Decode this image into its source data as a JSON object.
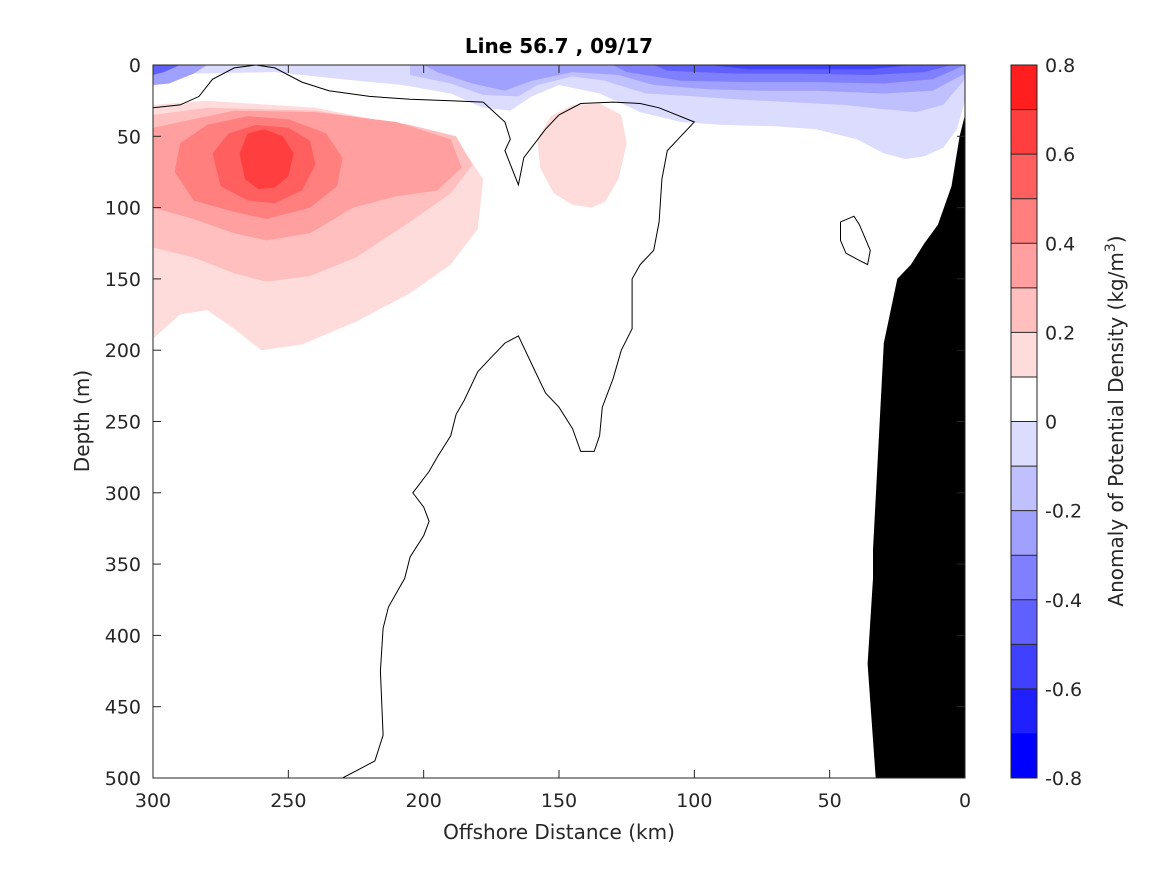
{
  "chart_data": {
    "type": "heatmap",
    "title": "Line 56.7 , 09/17",
    "xlabel": "Offshore Distance (km)",
    "ylabel": "Depth (m)",
    "colorbar_label_text": "Anomaly of Potential Density (kg/m",
    "colorbar_label_sup": "3",
    "colorbar_label_close": ")",
    "xlim": [
      300,
      0
    ],
    "ylim": [
      500,
      0
    ],
    "x_reversed": true,
    "y_reversed": true,
    "x_ticks": [
      300,
      250,
      200,
      150,
      100,
      50,
      0
    ],
    "x_tick_labels": [
      "300",
      "250",
      "200",
      "150",
      "100",
      "50",
      "0"
    ],
    "y_ticks": [
      0,
      50,
      100,
      150,
      200,
      250,
      300,
      350,
      400,
      450,
      500
    ],
    "y_tick_labels": [
      "0",
      "50",
      "100",
      "150",
      "200",
      "250",
      "300",
      "350",
      "400",
      "450",
      "500"
    ],
    "colorbar": {
      "min": -0.8,
      "max": 0.8,
      "levels": [
        -0.8,
        -0.7,
        -0.6,
        -0.5,
        -0.4,
        -0.3,
        -0.2,
        -0.1,
        0,
        0.1,
        0.2,
        0.3,
        0.4,
        0.5,
        0.6,
        0.7,
        0.8
      ],
      "colors": [
        "#0000ff",
        "#2020ff",
        "#4040ff",
        "#6060ff",
        "#8080ff",
        "#a0a0ff",
        "#c0c0ff",
        "#dcdcff",
        "#ffffff",
        "#ffdcdc",
        "#ffbfbf",
        "#ff9f9f",
        "#ff7f7f",
        "#ff5f5f",
        "#ff3f3f",
        "#ff1f1f"
      ],
      "tick_values": [
        -0.8,
        -0.6,
        -0.4,
        -0.2,
        0,
        0.2,
        0.4,
        0.6,
        0.8
      ],
      "tick_labels": [
        "-0.8",
        "-0.6",
        "-0.4",
        "-0.2",
        "0",
        "0.2",
        "0.4",
        "0.6",
        "0.8"
      ]
    },
    "positive_anomalies": [
      {
        "level": 0.1,
        "color": "#ffdcdc",
        "points": [
          [
            300,
            192
          ],
          [
            290,
            175
          ],
          [
            280,
            172
          ],
          [
            270,
            185
          ],
          [
            260,
            200
          ],
          [
            245,
            196
          ],
          [
            225,
            180
          ],
          [
            205,
            160
          ],
          [
            190,
            140
          ],
          [
            180,
            115
          ],
          [
            178,
            80
          ],
          [
            185,
            60
          ],
          [
            200,
            45
          ],
          [
            240,
            30
          ],
          [
            280,
            25
          ],
          [
            300,
            28
          ]
        ]
      },
      {
        "level": 0.2,
        "color": "#ffbfbf",
        "points": [
          [
            300,
            128
          ],
          [
            285,
            135
          ],
          [
            270,
            146
          ],
          [
            258,
            152
          ],
          [
            242,
            148
          ],
          [
            225,
            135
          ],
          [
            205,
            110
          ],
          [
            190,
            90
          ],
          [
            182,
            70
          ],
          [
            188,
            50
          ],
          [
            205,
            42
          ],
          [
            240,
            32
          ],
          [
            280,
            30
          ],
          [
            300,
            35
          ]
        ]
      },
      {
        "level": 0.3,
        "color": "#ff9f9f",
        "points": [
          [
            300,
            100
          ],
          [
            285,
            108
          ],
          [
            270,
            118
          ],
          [
            258,
            123
          ],
          [
            242,
            118
          ],
          [
            226,
            100
          ],
          [
            210,
            92
          ],
          [
            195,
            88
          ],
          [
            186,
            72
          ],
          [
            190,
            52
          ],
          [
            210,
            40
          ],
          [
            240,
            33
          ],
          [
            270,
            32
          ],
          [
            300,
            44
          ]
        ]
      },
      {
        "level": 0.4,
        "color": "#ff7f7f",
        "points": [
          [
            285,
            95
          ],
          [
            270,
            103
          ],
          [
            258,
            108
          ],
          [
            242,
            100
          ],
          [
            232,
            85
          ],
          [
            230,
            65
          ],
          [
            236,
            48
          ],
          [
            250,
            38
          ],
          [
            265,
            36
          ],
          [
            280,
            42
          ],
          [
            290,
            55
          ],
          [
            292,
            75
          ]
        ]
      },
      {
        "level": 0.5,
        "color": "#ff5f5f",
        "points": [
          [
            275,
            85
          ],
          [
            265,
            95
          ],
          [
            255,
            97
          ],
          [
            245,
            88
          ],
          [
            240,
            70
          ],
          [
            242,
            53
          ],
          [
            250,
            44
          ],
          [
            262,
            42
          ],
          [
            272,
            48
          ],
          [
            278,
            62
          ]
        ]
      },
      {
        "level": 0.6,
        "color": "#ff3f3f",
        "points": [
          [
            266,
            80
          ],
          [
            261,
            87
          ],
          [
            255,
            86
          ],
          [
            250,
            78
          ],
          [
            248,
            62
          ],
          [
            252,
            50
          ],
          [
            259,
            45
          ],
          [
            265,
            48
          ],
          [
            268,
            62
          ]
        ]
      },
      {
        "level": 0.1,
        "color": "#ffdcdc",
        "points": [
          [
            145,
            98
          ],
          [
            138,
            100
          ],
          [
            133,
            96
          ],
          [
            128,
            80
          ],
          [
            125,
            55
          ],
          [
            127,
            35
          ],
          [
            135,
            27
          ],
          [
            145,
            28
          ],
          [
            153,
            36
          ],
          [
            158,
            52
          ],
          [
            157,
            72
          ],
          [
            152,
            90
          ]
        ]
      }
    ],
    "negative_anomalies": [
      {
        "level": -0.1,
        "color": "#dcdcff",
        "points": [
          [
            300,
            0
          ],
          [
            0,
            0
          ],
          [
            0,
            25
          ],
          [
            3,
            45
          ],
          [
            8,
            58
          ],
          [
            15,
            64
          ],
          [
            22,
            66
          ],
          [
            30,
            62
          ],
          [
            40,
            52
          ],
          [
            55,
            45
          ],
          [
            70,
            43
          ],
          [
            90,
            42
          ],
          [
            105,
            40
          ],
          [
            120,
            33
          ],
          [
            135,
            20
          ],
          [
            150,
            14
          ],
          [
            160,
            22
          ],
          [
            168,
            32
          ],
          [
            178,
            30
          ],
          [
            190,
            20
          ],
          [
            208,
            14
          ],
          [
            230,
            10
          ],
          [
            255,
            5
          ],
          [
            285,
            6
          ],
          [
            300,
            9
          ]
        ]
      },
      {
        "level": -0.2,
        "color": "#c0c0ff",
        "points": [
          [
            205,
            0
          ],
          [
            0,
            0
          ],
          [
            0,
            10
          ],
          [
            8,
            28
          ],
          [
            18,
            33
          ],
          [
            30,
            31
          ],
          [
            45,
            28
          ],
          [
            65,
            26
          ],
          [
            85,
            24
          ],
          [
            100,
            22
          ],
          [
            118,
            20
          ],
          [
            133,
            11
          ],
          [
            145,
            8
          ],
          [
            158,
            14
          ],
          [
            165,
            22
          ],
          [
            178,
            21
          ],
          [
            190,
            13
          ],
          [
            205,
            7
          ]
        ]
      },
      {
        "level": -0.3,
        "color": "#a0a0ff",
        "points": [
          [
            200,
            0
          ],
          [
            0,
            0
          ],
          [
            0,
            6
          ],
          [
            12,
            18
          ],
          [
            30,
            20
          ],
          [
            55,
            18
          ],
          [
            75,
            18
          ],
          [
            95,
            17
          ],
          [
            115,
            14
          ],
          [
            128,
            7
          ],
          [
            145,
            5
          ],
          [
            160,
            11
          ],
          [
            170,
            18
          ],
          [
            182,
            13
          ],
          [
            195,
            5
          ]
        ]
      },
      {
        "level": -0.4,
        "color": "#8080ff",
        "points": [
          [
            130,
            0
          ],
          [
            0,
            0
          ],
          [
            12,
            10
          ],
          [
            30,
            13
          ],
          [
            55,
            12
          ],
          [
            80,
            12
          ],
          [
            105,
            11
          ],
          [
            125,
            5
          ]
        ]
      },
      {
        "level": -0.5,
        "color": "#6060ff",
        "points": [
          [
            115,
            0
          ],
          [
            5,
            0
          ],
          [
            15,
            5
          ],
          [
            35,
            7
          ],
          [
            60,
            6
          ],
          [
            85,
            6
          ],
          [
            110,
            4
          ]
        ]
      },
      {
        "level": -0.6,
        "color": "#4040ff",
        "points": [
          [
            95,
            0
          ],
          [
            20,
            0
          ],
          [
            35,
            3
          ],
          [
            55,
            3
          ],
          [
            80,
            3
          ]
        ]
      },
      {
        "level": -0.3,
        "color": "#a0a0ff",
        "points": [
          [
            300,
            0
          ],
          [
            280,
            0
          ],
          [
            285,
            6
          ],
          [
            294,
            13
          ],
          [
            300,
            14
          ]
        ]
      },
      {
        "level": -0.5,
        "color": "#6060ff",
        "points": [
          [
            300,
            0
          ],
          [
            290,
            0
          ],
          [
            296,
            5
          ],
          [
            300,
            7
          ]
        ]
      }
    ],
    "zero_contours": [
      [
        [
          300,
          30
        ],
        [
          290,
          28
        ],
        [
          283,
          22
        ],
        [
          278,
          10
        ],
        [
          270,
          2
        ],
        [
          262,
          0
        ],
        [
          255,
          2
        ],
        [
          245,
          12
        ],
        [
          235,
          18
        ],
        [
          220,
          22
        ],
        [
          205,
          24
        ],
        [
          190,
          25
        ],
        [
          178,
          26
        ],
        [
          170,
          40
        ],
        [
          168,
          52
        ],
        [
          170,
          60
        ],
        [
          165,
          84
        ],
        [
          163,
          65
        ],
        [
          155,
          45
        ],
        [
          150,
          35
        ],
        [
          142,
          27
        ],
        [
          130,
          26
        ],
        [
          120,
          27
        ],
        [
          113,
          30
        ],
        [
          100,
          40
        ],
        [
          105,
          50
        ],
        [
          110,
          60
        ],
        [
          112,
          80
        ],
        [
          113,
          110
        ],
        [
          115,
          130
        ],
        [
          120,
          140
        ],
        [
          123,
          150
        ],
        [
          123,
          185
        ],
        [
          127,
          200
        ],
        [
          130,
          220
        ],
        [
          134,
          240
        ],
        [
          135,
          260
        ],
        [
          137,
          271
        ],
        [
          142,
          271
        ],
        [
          145,
          255
        ],
        [
          150,
          240
        ],
        [
          155,
          230
        ],
        [
          160,
          210
        ],
        [
          165,
          190
        ],
        [
          170,
          195
        ],
        [
          175,
          205
        ],
        [
          180,
          215
        ],
        [
          185,
          235
        ],
        [
          188,
          245
        ],
        [
          190,
          260
        ],
        [
          195,
          275
        ],
        [
          198,
          285
        ],
        [
          200,
          290
        ],
        [
          202,
          295
        ],
        [
          204,
          300
        ],
        [
          200,
          310
        ],
        [
          198,
          320
        ],
        [
          200,
          330
        ],
        [
          205,
          345
        ],
        [
          207,
          360
        ],
        [
          210,
          370
        ],
        [
          213,
          380
        ],
        [
          215,
          395
        ],
        [
          216,
          425
        ],
        [
          215,
          470
        ],
        [
          218,
          488
        ],
        [
          225,
          495
        ],
        [
          230,
          500
        ]
      ],
      [
        [
          262,
          0
        ],
        [
          300,
          0
        ]
      ],
      [
        [
          46,
          110
        ],
        [
          41,
          106
        ],
        [
          39,
          112
        ],
        [
          35,
          130
        ],
        [
          36,
          140
        ],
        [
          39,
          137
        ],
        [
          44,
          132
        ],
        [
          46,
          123
        ],
        [
          46,
          110
        ]
      ]
    ],
    "bathymetry": [
      [
        0,
        35
      ],
      [
        2,
        50
      ],
      [
        5,
        85
      ],
      [
        10,
        112
      ],
      [
        15,
        125
      ],
      [
        20,
        140
      ],
      [
        25,
        150
      ],
      [
        30,
        195
      ],
      [
        34,
        340
      ],
      [
        34,
        360
      ],
      [
        36,
        420
      ],
      [
        33,
        500
      ],
      [
        0,
        500
      ]
    ]
  }
}
